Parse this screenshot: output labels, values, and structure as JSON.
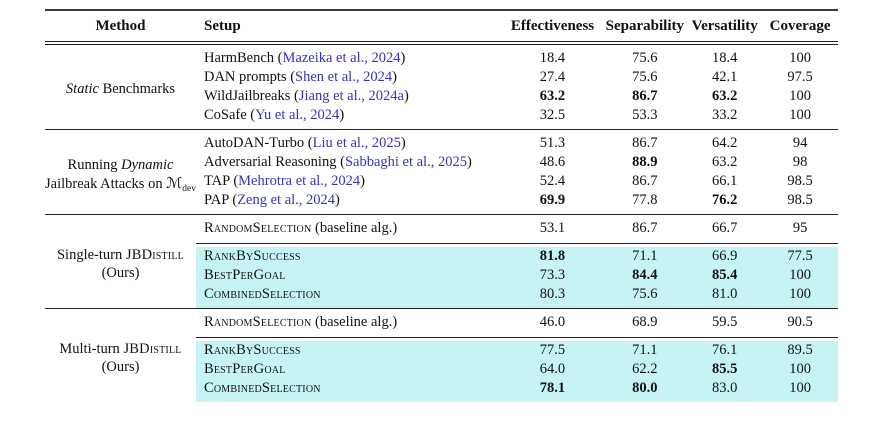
{
  "table": {
    "headers": {
      "method": "Method",
      "setup": "Setup",
      "effectiveness": "Effectiveness",
      "separability": "Separability",
      "versatility": "Versatility",
      "coverage": "Coverage"
    },
    "colors": {
      "highlight": "#c6f3f4",
      "citation_link": "#3434bb"
    },
    "groups": [
      {
        "method": {
          "em": "Static",
          "rest": " Benchmarks"
        },
        "rows": [
          {
            "name": "HarmBench",
            "cite": "Mazeika et al., 2024",
            "values": [
              "18.4",
              "75.6",
              "18.4",
              "100"
            ]
          },
          {
            "name": "DAN prompts",
            "cite": "Shen et al., 2024",
            "values": [
              "27.4",
              "75.6",
              "42.1",
              "97.5"
            ]
          },
          {
            "name": "WildJailbreaks",
            "cite": "Jiang et al., 2024a",
            "values": [
              "63.2",
              "86.7",
              "63.2",
              "100"
            ]
          },
          {
            "name": "CoSafe",
            "cite": "Yu et al., 2024",
            "values": [
              "32.5",
              "53.3",
              "33.2",
              "100"
            ]
          }
        ]
      },
      {
        "method": {
          "pre": "Running ",
          "em": "Dynamic",
          "line2": "Jailbreak Attacks on ",
          "math": "ℳ",
          "sub": "dev"
        },
        "rows": [
          {
            "name": "AutoDAN-Turbo",
            "cite": "Liu et al., 2025",
            "values": [
              "51.3",
              "86.7",
              "64.2",
              "94"
            ]
          },
          {
            "name": "Adversarial Reasoning",
            "cite": "Sabbaghi et al., 2025",
            "values": [
              "48.6",
              "88.9",
              "63.2",
              "98"
            ]
          },
          {
            "name": "TAP",
            "cite": "Mehrotra et al., 2024",
            "values": [
              "52.4",
              "86.7",
              "66.1",
              "98.5"
            ]
          },
          {
            "name": "PAP",
            "cite": "Zeng et al., 2024",
            "values": [
              "69.9",
              "77.8",
              "76.2",
              "98.5"
            ]
          }
        ]
      },
      {
        "method": {
          "pre": "Single-turn ",
          "sc": "JBDistill",
          "line2": "(Ours)"
        },
        "rows": [
          {
            "sc": "RandomSelection",
            "suffix": " (baseline alg.)",
            "values": [
              "53.1",
              "86.7",
              "66.7",
              "95"
            ]
          },
          {
            "sc": "RankBySuccess",
            "values": [
              "81.8",
              "71.1",
              "66.9",
              "77.5"
            ]
          },
          {
            "sc": "BestPerGoal",
            "values": [
              "73.3",
              "84.4",
              "85.4",
              "100"
            ]
          },
          {
            "sc": "CombinedSelection",
            "values": [
              "80.3",
              "75.6",
              "81.0",
              "100"
            ]
          }
        ]
      },
      {
        "method": {
          "pre": "Multi-turn ",
          "sc": "JBDistill",
          "line2": "(Ours)"
        },
        "rows": [
          {
            "sc": "RandomSelection",
            "suffix": " (baseline alg.)",
            "values": [
              "46.0",
              "68.9",
              "59.5",
              "90.5"
            ]
          },
          {
            "sc": "RankBySuccess",
            "values": [
              "77.5",
              "71.1",
              "76.1",
              "89.5"
            ]
          },
          {
            "sc": "BestPerGoal",
            "values": [
              "64.0",
              "62.2",
              "85.5",
              "100"
            ]
          },
          {
            "sc": "CombinedSelection",
            "values": [
              "78.1",
              "80.0",
              "83.0",
              "100"
            ]
          }
        ]
      }
    ]
  }
}
